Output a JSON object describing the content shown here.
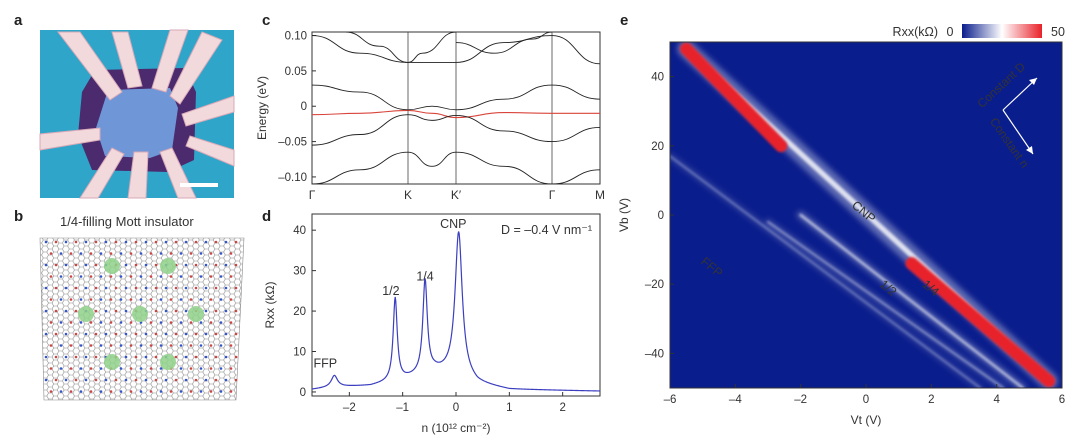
{
  "panels": {
    "a": {
      "label": "a",
      "colors": {
        "substrate": "#2fa6c9",
        "flake": "#6f96d6",
        "border": "#4b2a6e",
        "contact": "#f1d9dc",
        "scalebar": "#ffffff"
      }
    },
    "b": {
      "label": "b",
      "title": "1/4-filling Mott insulator",
      "colors": {
        "lattice": "#777777",
        "site": "#8fd18a",
        "dot_red": "#c44",
        "dot_blue": "#35c"
      }
    },
    "c": {
      "label": "c"
    },
    "d": {
      "label": "d"
    },
    "e": {
      "label": "e"
    }
  },
  "chart_data": [
    {
      "panel": "c",
      "type": "line",
      "xlabel": "",
      "ylabel": "Energy (eV)",
      "ylim": [
        -0.11,
        0.105
      ],
      "yticks": [
        0.1,
        0.05,
        0,
        -0.05,
        -0.1
      ],
      "ytick_labels": [
        "0.10",
        "0.05",
        "0",
        "–0.05",
        "–0.10"
      ],
      "kpoints": [
        0,
        1,
        1.5,
        2.5,
        3
      ],
      "kpoint_labels": [
        "Γ",
        "K",
        "K′",
        "Γ",
        "M"
      ],
      "highlight_color": "#d9443a",
      "line_color": "#222222",
      "series": [
        {
          "highlight": true,
          "points": [
            [
              0,
              -0.012
            ],
            [
              0.5,
              -0.01
            ],
            [
              1,
              -0.006
            ],
            [
              1.25,
              -0.01
            ],
            [
              1.5,
              -0.016
            ],
            [
              2,
              -0.009
            ],
            [
              2.5,
              -0.01
            ],
            [
              3,
              -0.01
            ]
          ]
        },
        {
          "highlight": false,
          "points": [
            [
              0,
              0.03
            ],
            [
              0.5,
              0.02
            ],
            [
              1,
              -0.005
            ],
            [
              1.25,
              0.0
            ],
            [
              1.5,
              -0.005
            ],
            [
              2,
              0.01
            ],
            [
              2.5,
              0.03
            ],
            [
              3,
              0.01
            ]
          ]
        },
        {
          "highlight": false,
          "points": [
            [
              0,
              0.1
            ],
            [
              0.5,
              0.075
            ],
            [
              1,
              0.062
            ],
            [
              1.5,
              0.062
            ],
            [
              2,
              0.09
            ],
            [
              2.5,
              0.1
            ],
            [
              3,
              0.06
            ]
          ]
        },
        {
          "highlight": false,
          "points": [
            [
              0,
              -0.055
            ],
            [
              0.5,
              -0.04
            ],
            [
              1,
              -0.012
            ],
            [
              1.25,
              -0.02
            ],
            [
              1.5,
              -0.013
            ],
            [
              2,
              -0.035
            ],
            [
              2.5,
              -0.05
            ],
            [
              3,
              -0.03
            ]
          ]
        },
        {
          "highlight": false,
          "points": [
            [
              0,
              -0.11
            ],
            [
              0.5,
              -0.09
            ],
            [
              1,
              -0.065
            ],
            [
              1.25,
              -0.085
            ],
            [
              1.5,
              -0.065
            ],
            [
              2,
              -0.085
            ],
            [
              2.5,
              -0.11
            ],
            [
              3,
              -0.09
            ]
          ]
        },
        {
          "highlight": false,
          "points": [
            [
              0.35,
              0.105
            ],
            [
              0.7,
              0.085
            ],
            [
              1,
              0.062
            ],
            [
              1.15,
              0.075
            ],
            [
              1.5,
              0.105
            ]
          ]
        },
        {
          "highlight": false,
          "points": [
            [
              1.5,
              0.09
            ],
            [
              1.9,
              0.075
            ],
            [
              2.3,
              0.095
            ],
            [
              2.5,
              0.105
            ]
          ]
        }
      ]
    },
    {
      "panel": "d",
      "type": "line",
      "xlabel": "n (10¹² cm⁻²)",
      "ylabel": "Rxx (kΩ)",
      "xlim": [
        -2.7,
        2.7
      ],
      "ylim": [
        -1,
        44
      ],
      "xticks": [
        -2,
        -1,
        0,
        1,
        2
      ],
      "xtick_labels": [
        "–2",
        "–1",
        "0",
        "1",
        "2"
      ],
      "yticks": [
        0,
        10,
        20,
        30,
        40
      ],
      "ytick_labels": [
        "0",
        "10",
        "20",
        "30",
        "40"
      ],
      "line_color": "#3b3fbf",
      "annotation_D": "D = –0.4 V nm⁻¹",
      "peaks": [
        {
          "label": "FFP",
          "n": -2.28,
          "height": 2.8,
          "width": 0.07,
          "label_x": -2.45,
          "label_y": 6
        },
        {
          "label": "1/2",
          "n": -1.14,
          "height": 20.5,
          "width": 0.045,
          "label_x": -1.22,
          "label_y": 24
        },
        {
          "label": "1/4",
          "n": -0.58,
          "height": 23.0,
          "width": 0.05,
          "label_x": -0.58,
          "label_y": 27.5
        },
        {
          "label": "CNP",
          "n": 0.05,
          "height": 35.0,
          "width": 0.08,
          "label_x": -0.05,
          "label_y": 40.5
        }
      ],
      "baseline": [
        [
          -2.7,
          0.6
        ],
        [
          -2.3,
          1.2
        ],
        [
          -1.6,
          1.5
        ],
        [
          -1.0,
          3.0
        ],
        [
          -0.4,
          5.0
        ],
        [
          0.05,
          4.5
        ],
        [
          0.4,
          2.0
        ],
        [
          1.0,
          0.6
        ],
        [
          2.7,
          0.2
        ]
      ]
    },
    {
      "panel": "e",
      "type": "heatmap",
      "xlabel": "Vt (V)",
      "ylabel": "Vb (V)",
      "xlim": [
        -6,
        6
      ],
      "ylim": [
        -50,
        50
      ],
      "xticks": [
        -6,
        -4,
        -2,
        0,
        2,
        4,
        6
      ],
      "xtick_labels": [
        "–6",
        "–4",
        "–2",
        "0",
        "2",
        "4",
        "6"
      ],
      "yticks": [
        40,
        20,
        0,
        -20,
        -40
      ],
      "ytick_labels": [
        "40",
        "20",
        "0",
        "–20",
        "–40"
      ],
      "colorbar": {
        "label": "Rxx(kΩ)",
        "min": 0,
        "max": 50,
        "min_label": "0",
        "max_label": "50"
      },
      "background": "#0a1d8c",
      "lines": [
        {
          "name": "CNP",
          "from": [
            -5.5,
            48
          ],
          "to": [
            5.6,
            -48
          ],
          "width": 9,
          "intensity": 1.0
        },
        {
          "name": "1/4",
          "from": [
            -2.0,
            0
          ],
          "to": [
            4.8,
            -50
          ],
          "width": 4,
          "intensity": 0.8
        },
        {
          "name": "1/2",
          "from": [
            -3.0,
            -2
          ],
          "to": [
            4.2,
            -50
          ],
          "width": 3,
          "intensity": 0.6
        },
        {
          "name": "FFP",
          "from": [
            -6,
            17
          ],
          "to": [
            3.5,
            -50
          ],
          "width": 3,
          "intensity": 0.45
        }
      ],
      "annotations": [
        {
          "text": "CNP",
          "x": -0.15,
          "y": 0
        },
        {
          "text": "FFP",
          "x": -4.8,
          "y": -16
        },
        {
          "text": "1/2",
          "x": 0.6,
          "y": -22
        },
        {
          "text": "1/4",
          "x": 1.9,
          "y": -22
        }
      ],
      "arrow_labels": {
        "up": "Constant D",
        "down": "Constant n"
      }
    }
  ]
}
